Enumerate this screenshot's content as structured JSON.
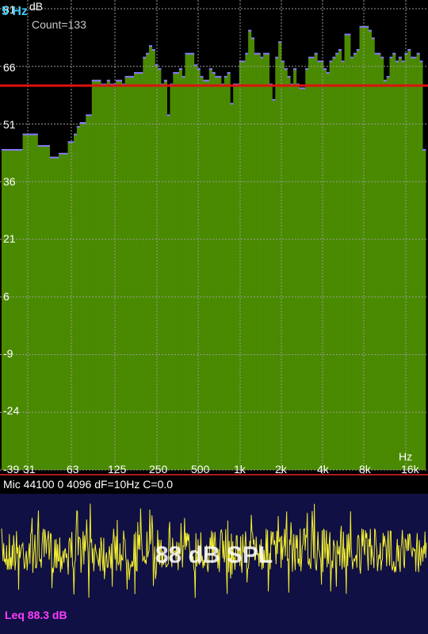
{
  "spectrum": {
    "freq_readout": "5 Hz",
    "y_unit": "dB",
    "x_unit": "Hz",
    "count_label": "Count=133",
    "y_ticks": [
      "81",
      "66",
      "51",
      "36",
      "21",
      "6",
      "-9",
      "-24",
      "-39"
    ],
    "x_ticks": [
      "31",
      "63",
      "125",
      "250",
      "500",
      "1k",
      "2k",
      "4k",
      "8k",
      "16k"
    ],
    "reference_db": 61,
    "colors": {
      "bar": "#4a8a00",
      "bar_top": "#8877ff",
      "grid": "#9a9a9a",
      "reference_line": "#e01010"
    }
  },
  "chart_data": {
    "type": "bar",
    "ylim": [
      -39,
      81
    ],
    "x_scale": "log-octave bands",
    "values": [
      44.5,
      44.5,
      44.5,
      44.5,
      44.5,
      44.5,
      44.5,
      48.5,
      48.5,
      48.5,
      48.5,
      48.5,
      45.5,
      45.5,
      45.5,
      45.5,
      42.5,
      42.5,
      42.5,
      43.5,
      43.5,
      43.5,
      46.5,
      46.5,
      48.5,
      50.5,
      51.5,
      51.5,
      53.5,
      53.5,
      62.5,
      62.5,
      62.5,
      61.5,
      61.5,
      62.5,
      61.5,
      61.5,
      62.5,
      62.5,
      61.5,
      63.5,
      63.5,
      63.5,
      64.5,
      64.5,
      64.5,
      68.5,
      69.5,
      71.5,
      70.5,
      66.5,
      65.5,
      61.5,
      62.5,
      53.5,
      61.5,
      64.5,
      64.5,
      65.5,
      63.5,
      69.5,
      69.5,
      69.5,
      66.5,
      65.5,
      63.5,
      62.5,
      62.5,
      65.5,
      64.5,
      63.5,
      63.5,
      61.5,
      63.5,
      64.5,
      56.5,
      61.5,
      61.5,
      67.5,
      67.5,
      69.5,
      75.5,
      73.5,
      69.5,
      69.5,
      68.5,
      69.5,
      69.5,
      61.5,
      57.5,
      68.5,
      72.5,
      67.5,
      65.5,
      63.5,
      61.5,
      65.5,
      61.5,
      60.5,
      60.5,
      65.5,
      68.5,
      68.5,
      69.5,
      67.5,
      67.5,
      65.5,
      64.5,
      67.5,
      68.5,
      69.5,
      70.5,
      67.5,
      74.5,
      74.5,
      68.5,
      69.5,
      70.5,
      76.5,
      76.5,
      76.5,
      75.5,
      73.5,
      69.5,
      69.5,
      68.5,
      62.5,
      63.5,
      68.5,
      69.5,
      67.5,
      68.5,
      67.5,
      69.5,
      70.5,
      68.5,
      68.5,
      69.5,
      67.5,
      44.5
    ]
  },
  "status": {
    "text": "Mic 44100 0 4096 dF=10Hz C=0.0"
  },
  "waveform": {
    "spl_label": "88 dB SPL",
    "leq_label": "Leq  88.3 dB",
    "line_color": "#f2ee30"
  }
}
